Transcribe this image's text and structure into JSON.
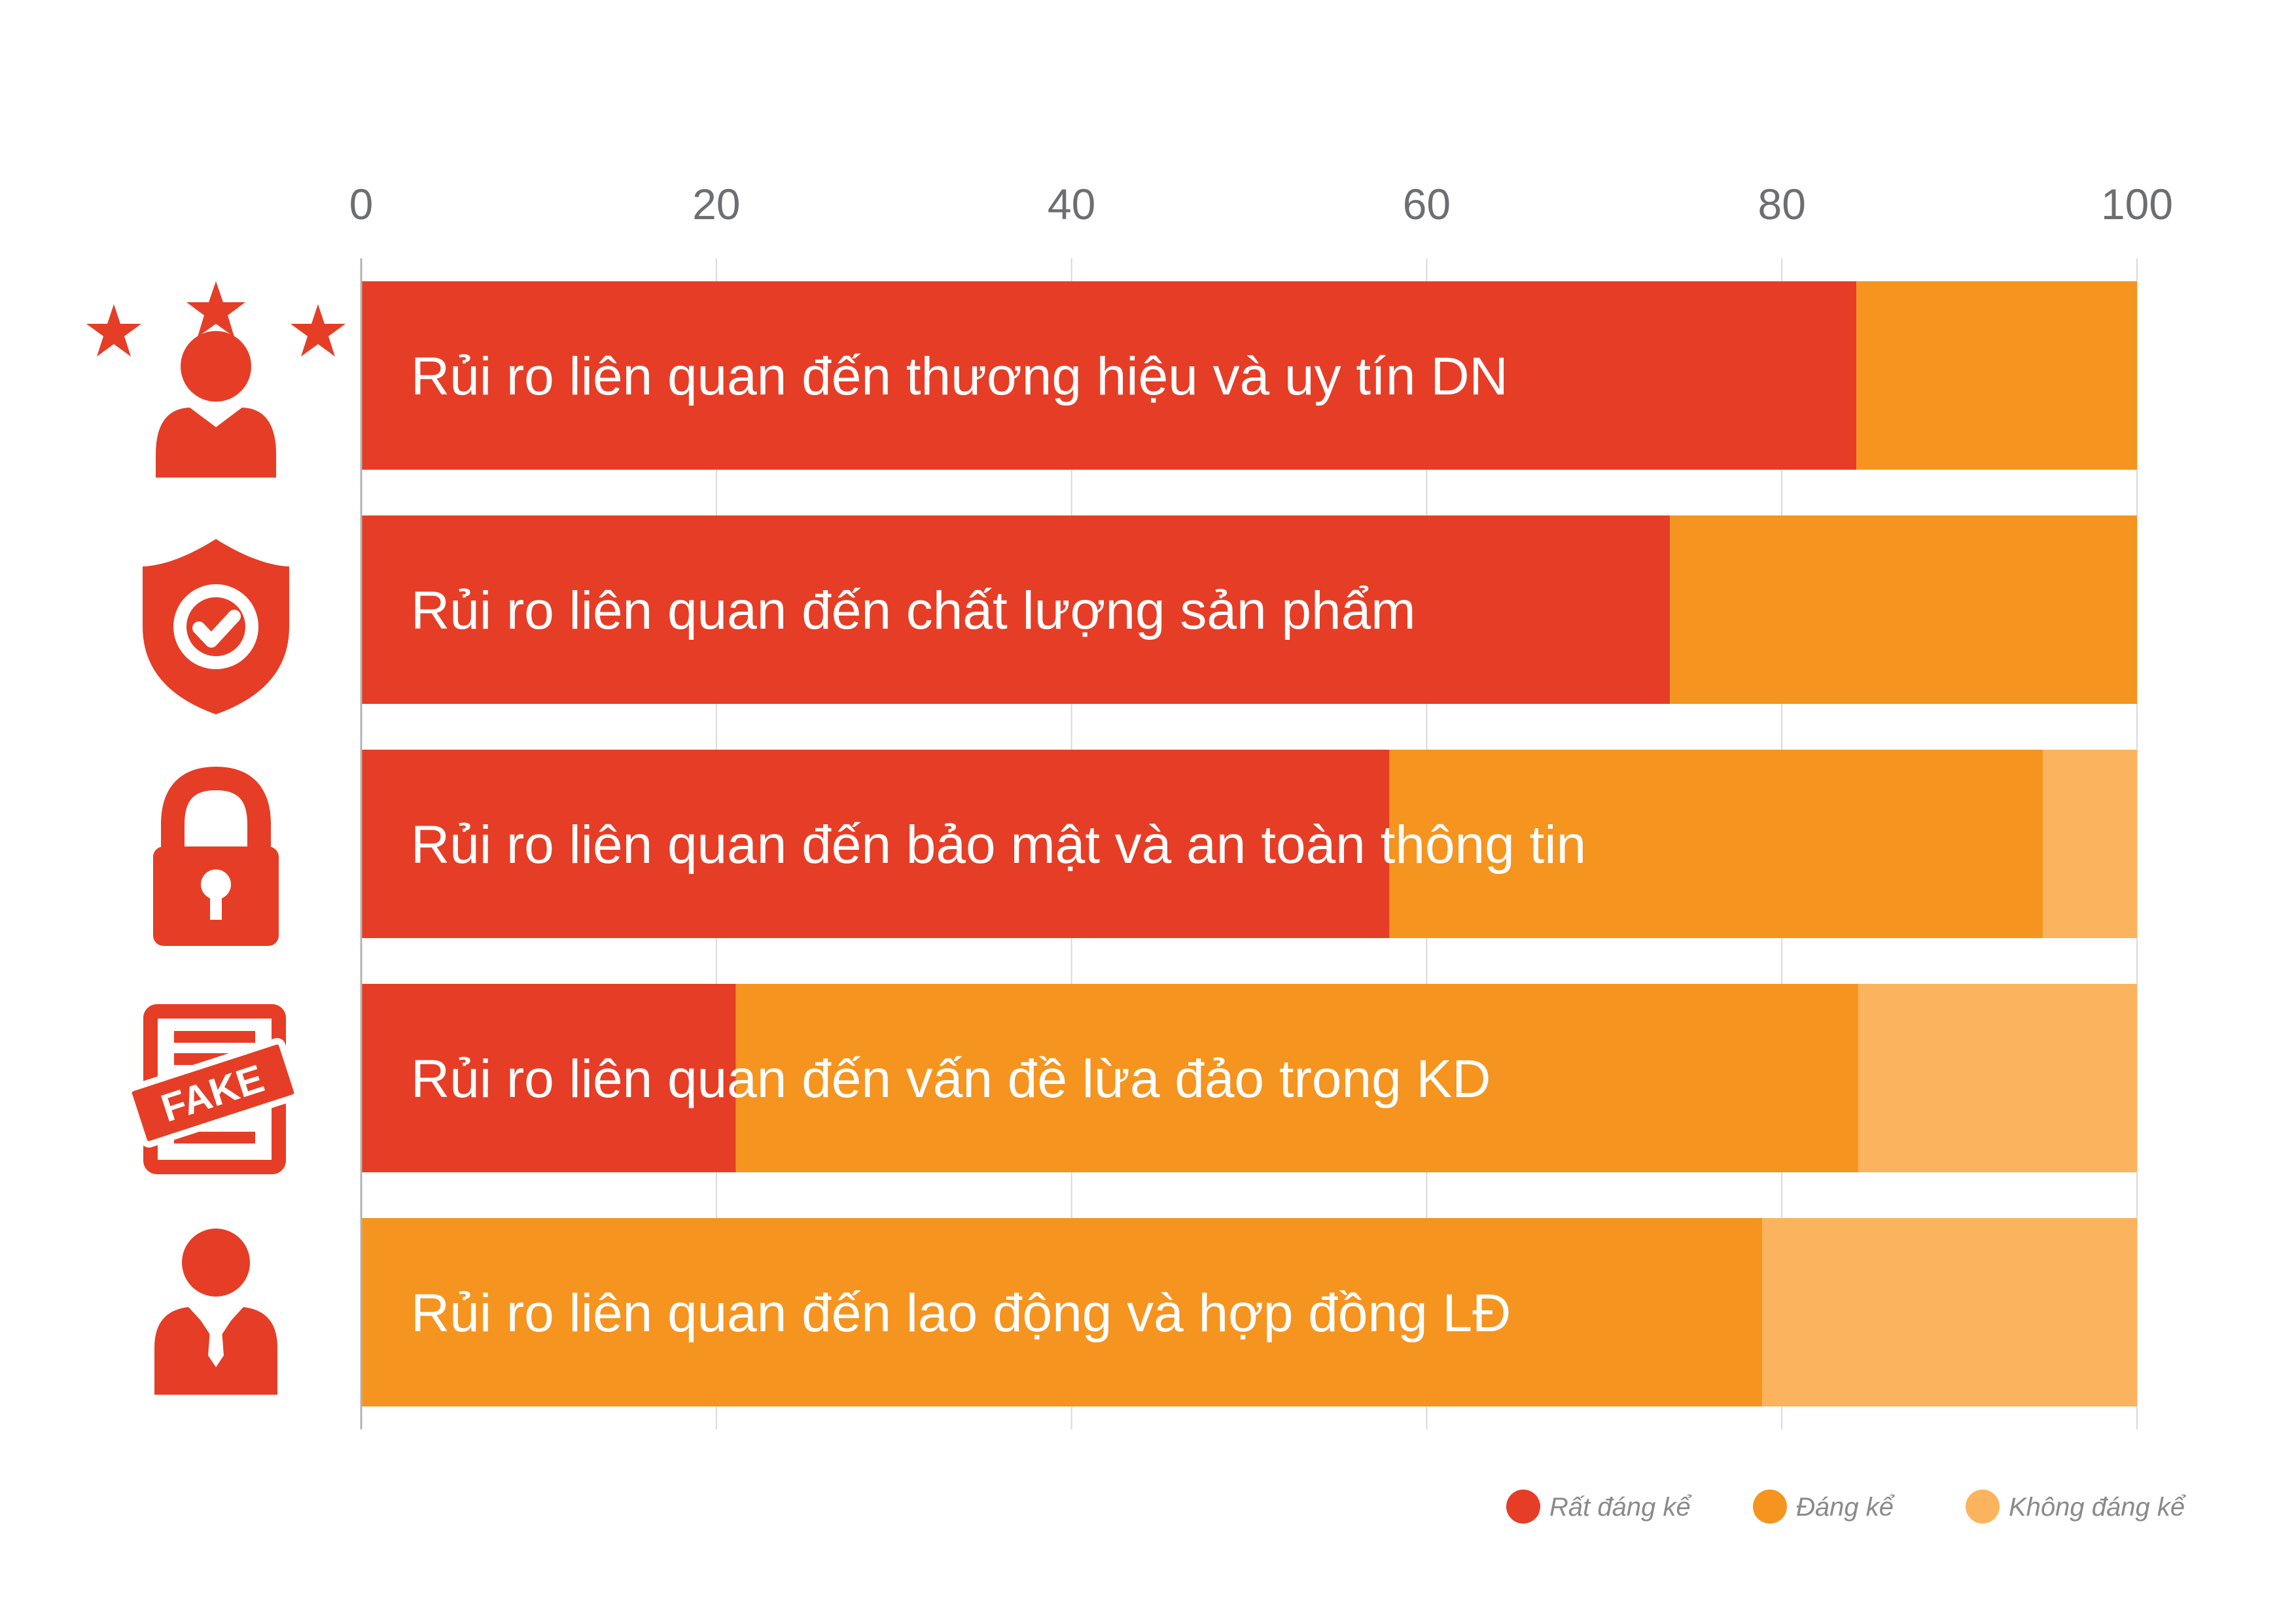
{
  "chart_data": {
    "type": "bar",
    "orientation": "horizontal",
    "stacked": true,
    "xlim": [
      0,
      100
    ],
    "xticks": [
      0,
      20,
      40,
      60,
      80,
      100
    ],
    "grid": true,
    "legend_position": "bottom-right",
    "categories": [
      "Rủi ro liên quan đến thương hiệu và uy tín DN",
      "Rủi ro liên quan đến chất lượng sản phẩm",
      "Rủi ro liên quan đến bảo mật và an toàn thông tin",
      "Rủi ro liên quan đến vấn đề lừa đảo trong KD",
      "Rủi ro liên quan đến lao động và hợp đồng LĐ"
    ],
    "icons": [
      "three-stars-person-icon",
      "shield-check-icon",
      "padlock-icon",
      "fake-document-icon",
      "businessman-icon"
    ],
    "series": [
      {
        "name": "Rất đáng kể",
        "color": "#e63d26",
        "values": [
          84.2,
          73.7,
          57.9,
          21.1,
          0
        ]
      },
      {
        "name": "Đáng kể",
        "color": "#f5941f",
        "values": [
          15.8,
          26.3,
          36.8,
          63.2,
          78.9
        ]
      },
      {
        "name": "Không đáng kể",
        "color": "#fbb45d",
        "values": [
          0,
          0,
          5.3,
          15.7,
          21.1
        ]
      }
    ]
  },
  "colors": {
    "icon": "#e63d26",
    "grid": "#d9d9d9",
    "axis": "#b3b3b3"
  }
}
